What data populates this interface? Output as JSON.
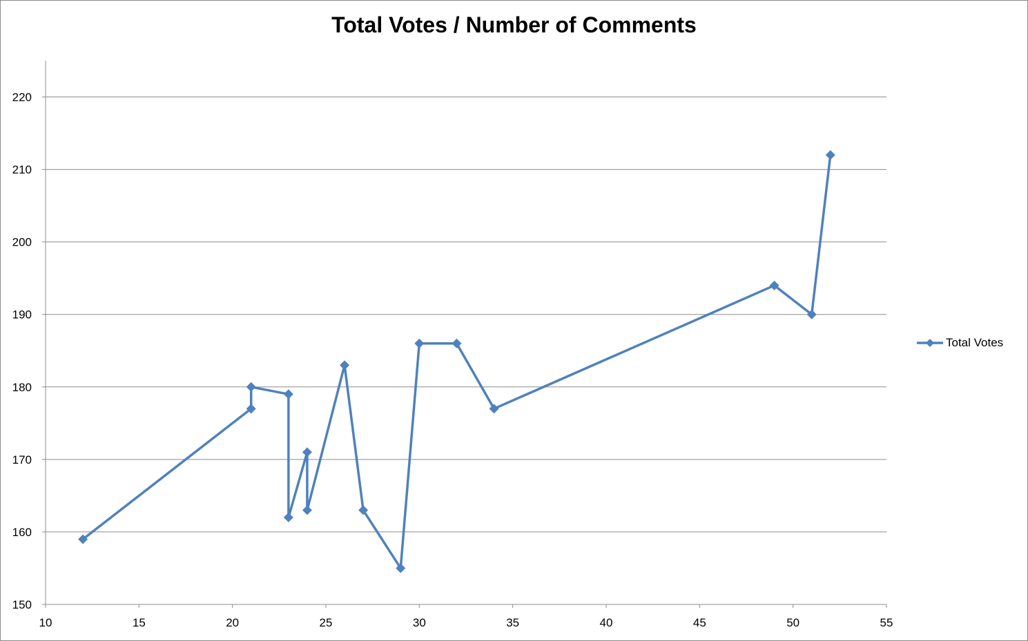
{
  "chart_data": {
    "type": "line",
    "title": "Total Votes / Number of Comments",
    "xlabel": "",
    "ylabel": "",
    "xlim": [
      10,
      55
    ],
    "ylim": [
      150,
      225
    ],
    "x_ticks": [
      10,
      15,
      20,
      25,
      30,
      35,
      40,
      45,
      50,
      55
    ],
    "y_ticks": [
      150,
      160,
      170,
      180,
      190,
      200,
      210,
      220
    ],
    "grid": "horizontal",
    "legend_position": "right",
    "series": [
      {
        "name": "Total Votes",
        "color": "#4f81bd",
        "marker": "diamond",
        "points": [
          [
            12,
            159
          ],
          [
            21,
            177
          ],
          [
            21,
            180
          ],
          [
            23,
            179
          ],
          [
            23,
            162
          ],
          [
            24,
            171
          ],
          [
            24,
            163
          ],
          [
            26,
            183
          ],
          [
            27,
            163
          ],
          [
            29,
            155
          ],
          [
            30,
            186
          ],
          [
            32,
            186
          ],
          [
            34,
            177
          ],
          [
            49,
            194
          ],
          [
            51,
            190
          ],
          [
            52,
            212
          ]
        ]
      }
    ]
  }
}
